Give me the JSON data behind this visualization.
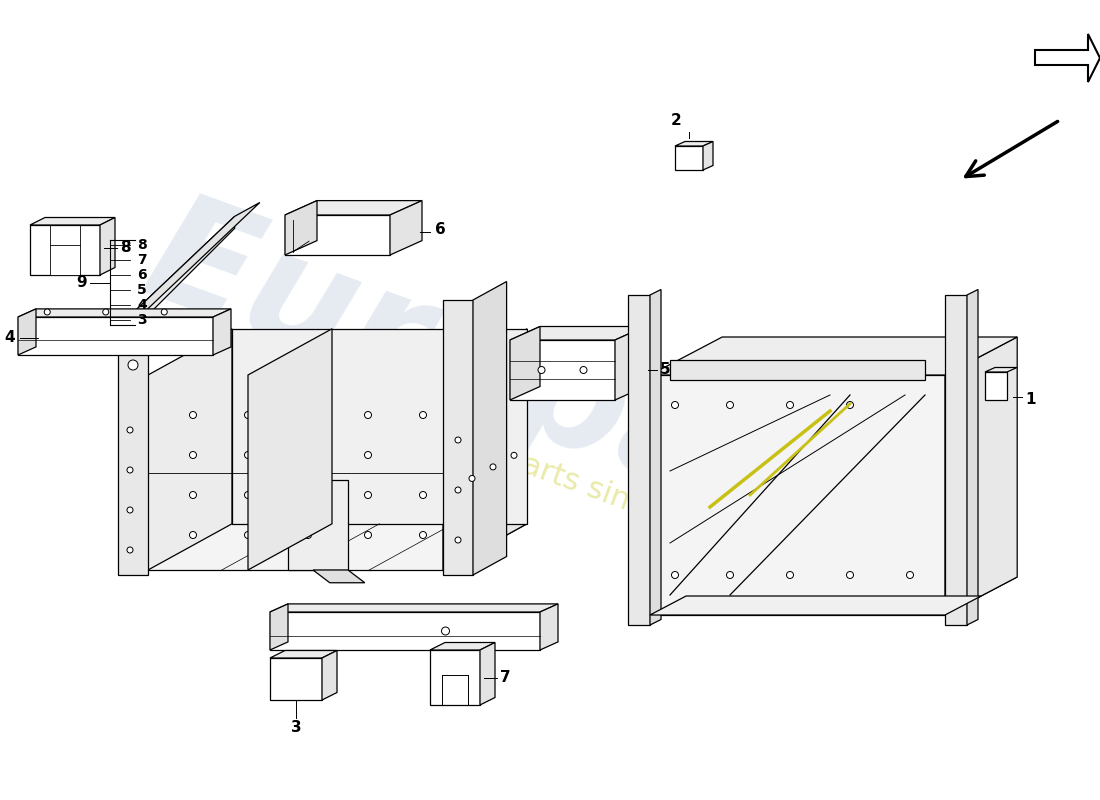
{
  "background_color": "#ffffff",
  "line_color": "#000000",
  "lw": 0.9,
  "watermark_color": "#c8d4e4",
  "watermark_yellow": "#d8d860",
  "part_labels": [
    "1",
    "2",
    "3",
    "4",
    "5",
    "6",
    "7",
    "8",
    "9"
  ],
  "legend_items": [
    "3",
    "4",
    "5",
    "6",
    "7",
    "8"
  ]
}
